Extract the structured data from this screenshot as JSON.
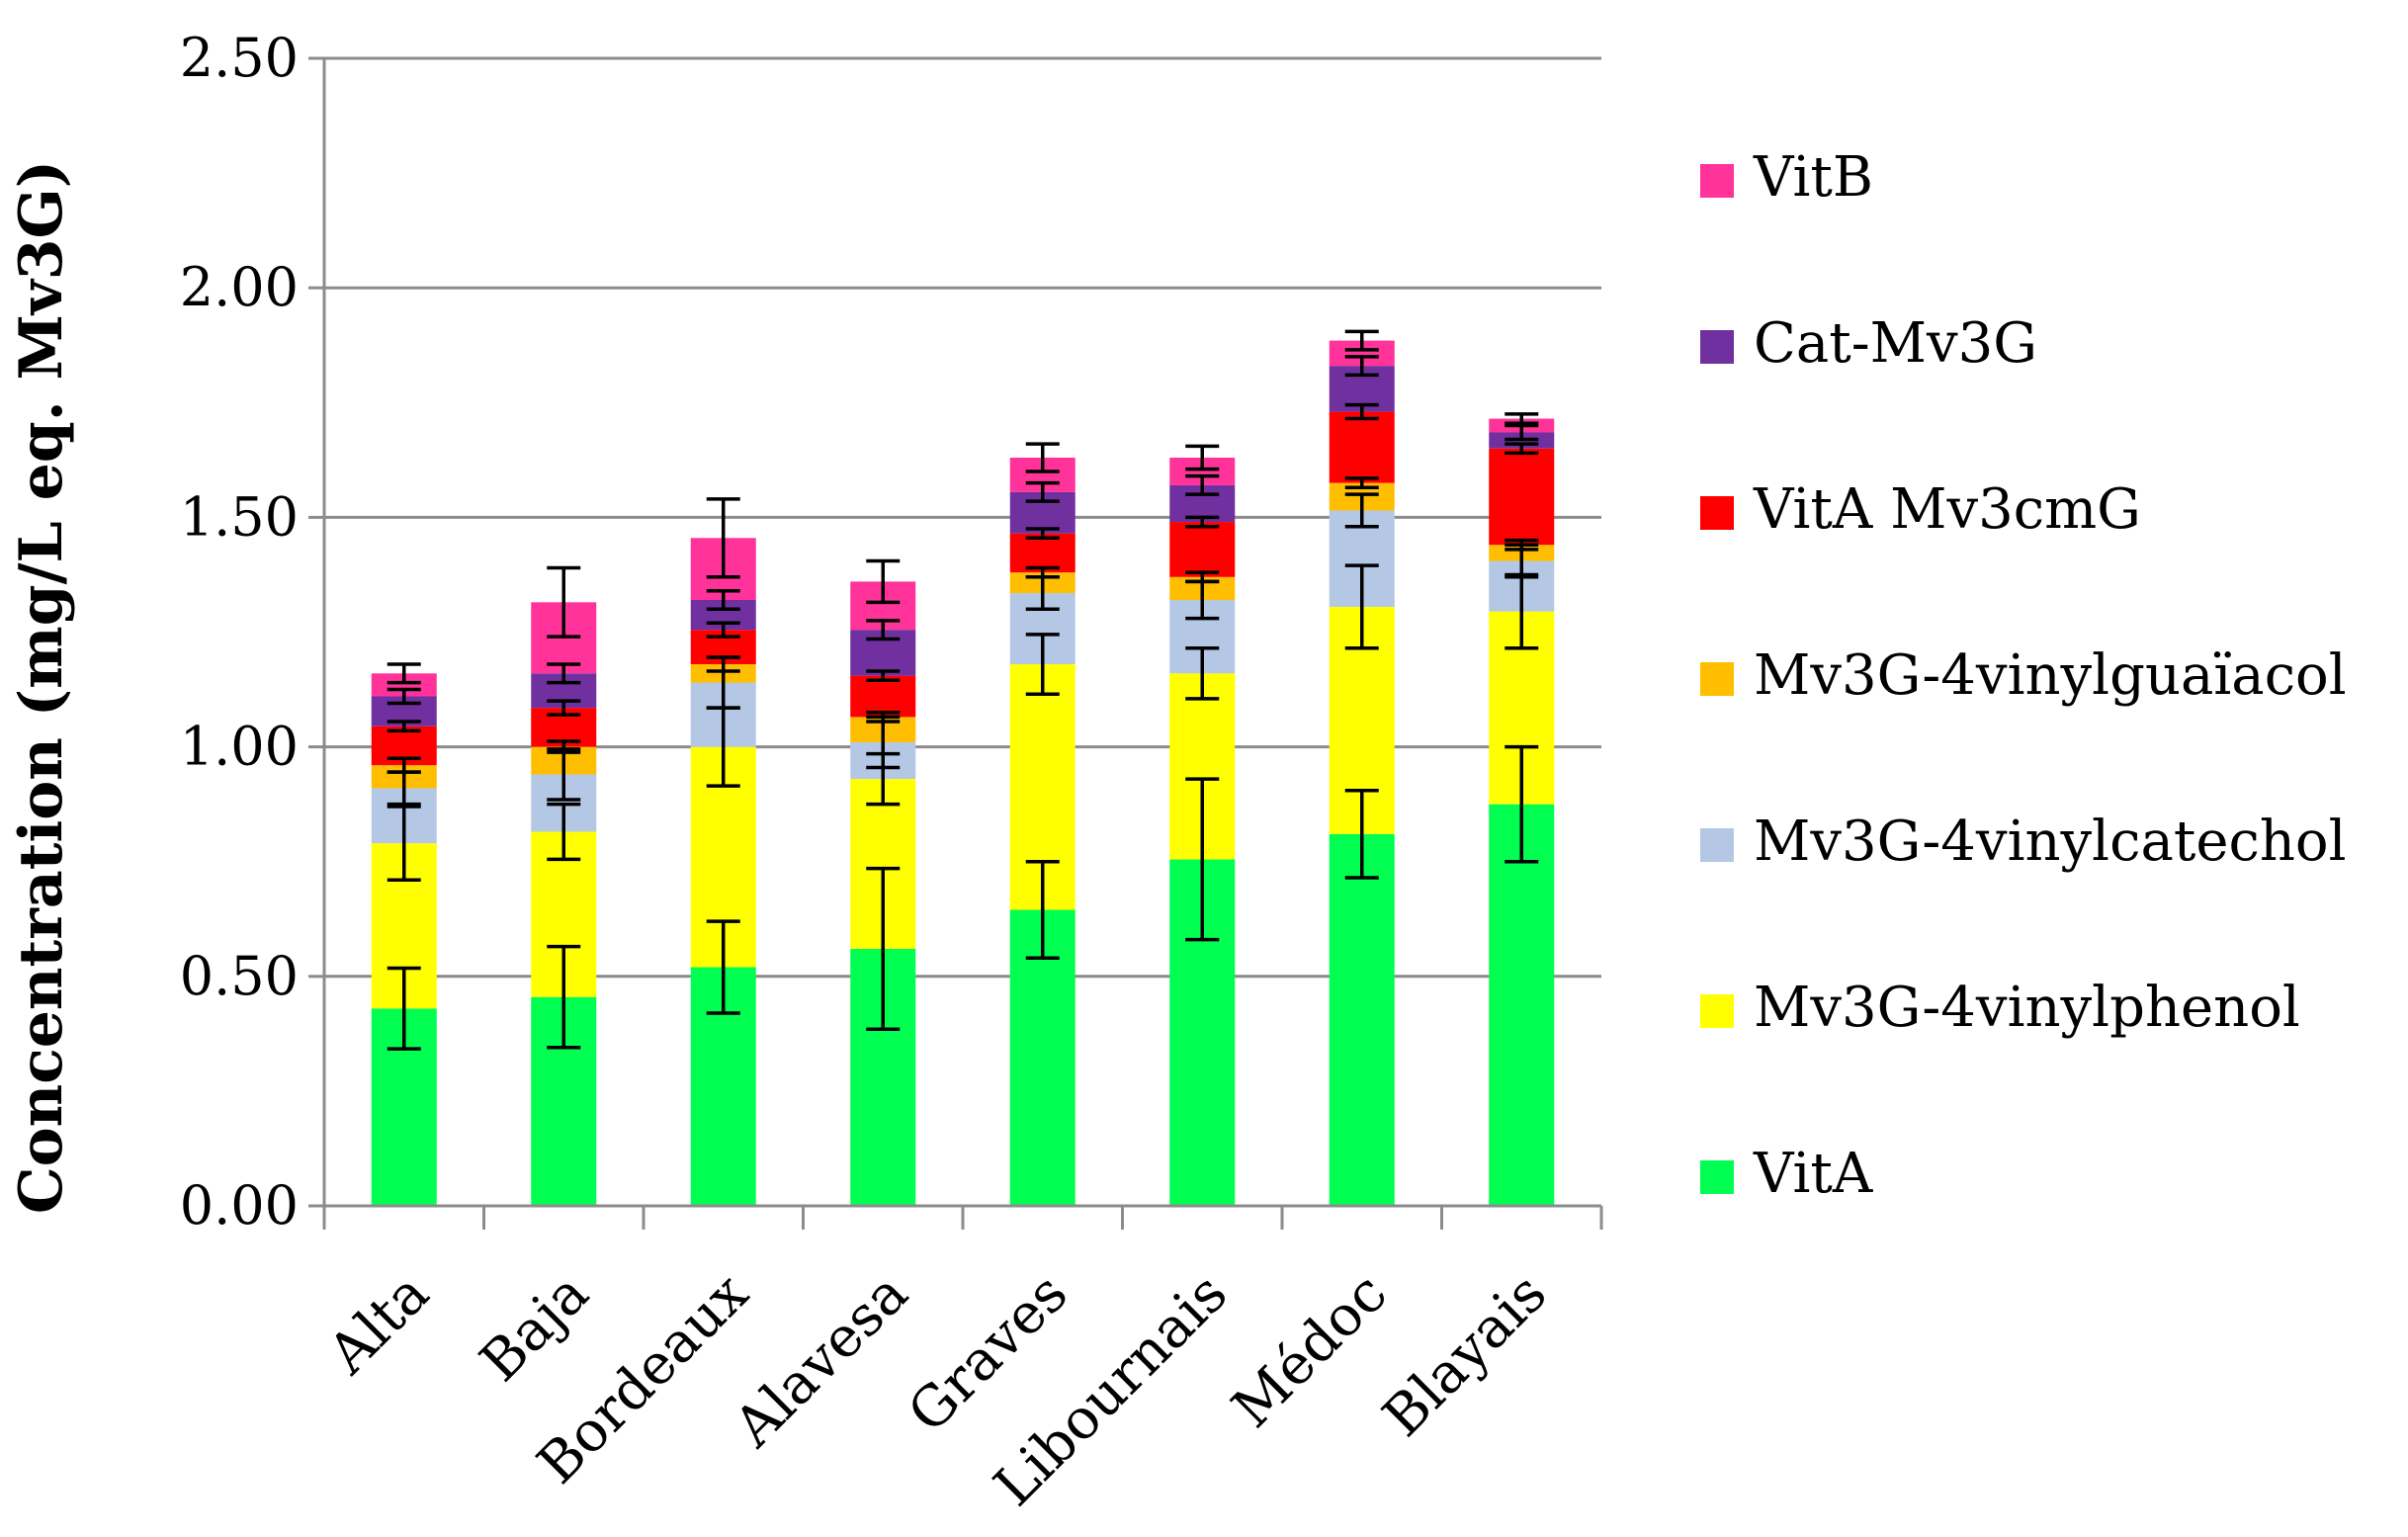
{
  "chart_data": {
    "type": "bar",
    "stacked": true,
    "title": "",
    "xlabel": "",
    "ylabel": "Concentration (mg/L eq. Mv3G)",
    "ylim": [
      0,
      2.5
    ],
    "yticks": [
      "0.00",
      "0.50",
      "1.00",
      "1.50",
      "2.00",
      "2.50"
    ],
    "grid": true,
    "legend_position": "right",
    "categories": [
      "Alta",
      "Baja",
      "Bordeaux",
      "Alavesa",
      "Graves",
      "Libournais",
      "Médoc",
      "Blayais"
    ],
    "series": [
      {
        "name": "VitA",
        "color": "#00ff50",
        "values": [
          0.43,
          0.455,
          0.52,
          0.56,
          0.645,
          0.755,
          0.81,
          0.875
        ],
        "errors": [
          0.088,
          0.11,
          0.1,
          0.175,
          0.105,
          0.175,
          0.095,
          0.125
        ]
      },
      {
        "name": "Mv3G-4vinylphenol",
        "color": "#ffff00",
        "values": [
          0.36,
          0.36,
          0.48,
          0.37,
          0.535,
          0.405,
          0.495,
          0.42
        ],
        "errors": [
          0.08,
          0.06,
          0.085,
          0.055,
          0.065,
          0.055,
          0.09,
          0.08
        ]
      },
      {
        "name": "Mv3G-4vinylcatechol",
        "color": "#b4c8e6",
        "values": [
          0.12,
          0.125,
          0.14,
          0.08,
          0.155,
          0.16,
          0.21,
          0.11
        ],
        "errors": [
          0.035,
          0.055,
          0.055,
          0.055,
          0.035,
          0.04,
          0.035,
          0.035
        ]
      },
      {
        "name": "Mv3G-4vinylguaïacol",
        "color": "#ffbe00",
        "values": [
          0.05,
          0.06,
          0.04,
          0.055,
          0.045,
          0.05,
          0.06,
          0.035
        ],
        "errors": [
          0.015,
          0.012,
          0.015,
          0.01,
          0.01,
          0.01,
          0.01,
          0.01
        ]
      },
      {
        "name": "VitA Mv3cmG",
        "color": "#ff0000",
        "values": [
          0.085,
          0.085,
          0.075,
          0.09,
          0.085,
          0.12,
          0.155,
          0.21
        ],
        "errors": [
          0.01,
          0.015,
          0.015,
          0.01,
          0.01,
          0.01,
          0.015,
          0.01
        ]
      },
      {
        "name": "Cat-Mv3G",
        "color": "#7030a0",
        "values": [
          0.065,
          0.075,
          0.065,
          0.1,
          0.09,
          0.08,
          0.1,
          0.035
        ],
        "errors": [
          0.015,
          0.02,
          0.02,
          0.02,
          0.02,
          0.02,
          0.02,
          0.015
        ]
      },
      {
        "name": "VitB",
        "color": "#ff3399",
        "values": [
          0.05,
          0.155,
          0.135,
          0.105,
          0.075,
          0.06,
          0.055,
          0.03
        ],
        "errors": [
          0.02,
          0.075,
          0.085,
          0.045,
          0.03,
          0.025,
          0.02,
          0.01
        ]
      }
    ]
  }
}
